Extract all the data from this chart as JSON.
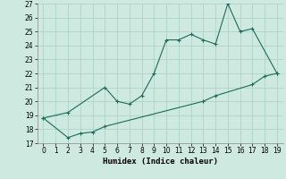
{
  "xlabel": "Humidex (Indice chaleur)",
  "x": [
    0,
    1,
    2,
    3,
    4,
    5,
    6,
    7,
    8,
    9,
    10,
    11,
    12,
    13,
    14,
    15,
    16,
    17,
    18,
    19
  ],
  "line1_y": [
    18.8,
    null,
    19.2,
    null,
    null,
    21.0,
    20.0,
    19.8,
    20.4,
    22.0,
    24.4,
    24.4,
    24.8,
    24.4,
    24.1,
    27.0,
    25.0,
    25.2,
    null,
    22.0
  ],
  "line2_y": [
    18.8,
    null,
    17.4,
    17.7,
    17.8,
    18.2,
    null,
    null,
    null,
    null,
    null,
    null,
    null,
    20.0,
    20.4,
    null,
    null,
    21.2,
    21.8,
    22.0
  ],
  "xlim": [
    -0.5,
    19.5
  ],
  "ylim": [
    17,
    27
  ],
  "yticks": [
    17,
    18,
    19,
    20,
    21,
    22,
    23,
    24,
    25,
    26,
    27
  ],
  "xticks": [
    0,
    1,
    2,
    3,
    4,
    5,
    6,
    7,
    8,
    9,
    10,
    11,
    12,
    13,
    14,
    15,
    16,
    17,
    18,
    19
  ],
  "line_color": "#1a6b5a",
  "bg_color": "#ceeae0",
  "grid_color": "#aacfbf",
  "tick_fontsize": 5.5,
  "xlabel_fontsize": 6.5
}
